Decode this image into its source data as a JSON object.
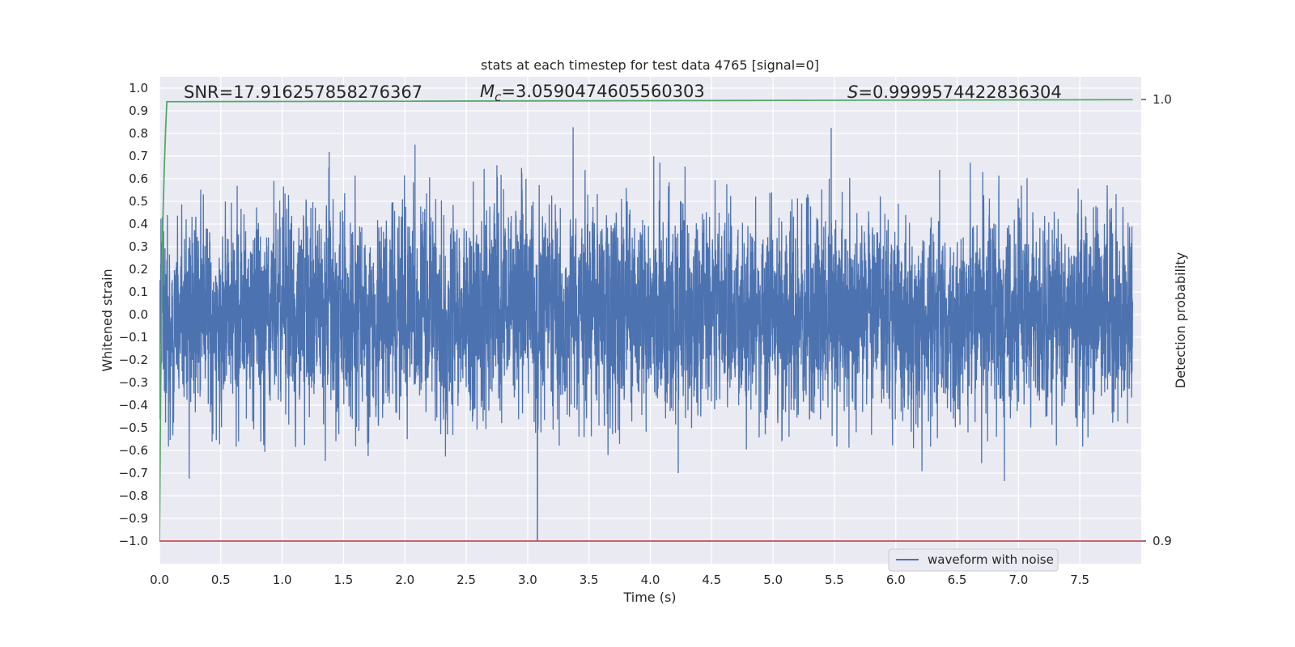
{
  "chart_data": {
    "type": "line",
    "title": "stats at each timestep for test data 4765 [signal=0]",
    "xlabel": "Time (s)",
    "ylabel": "Whitened strain",
    "y2label": "Detection probability",
    "xlim": [
      0.0,
      8.0
    ],
    "ylim": [
      -1.1,
      1.05
    ],
    "y2lim": [
      0.9,
      1.0
    ],
    "xticks": [
      0.0,
      0.5,
      1.0,
      1.5,
      2.0,
      2.5,
      3.0,
      3.5,
      4.0,
      4.5,
      5.0,
      5.5,
      6.0,
      6.5,
      7.0,
      7.5
    ],
    "yticks": [
      1.0,
      0.9,
      0.8,
      0.7,
      0.6,
      0.5,
      0.4,
      0.3,
      0.2,
      0.1,
      0.0,
      -0.1,
      -0.2,
      -0.3,
      -0.4,
      -0.5,
      -0.6,
      -0.7,
      -0.8,
      -0.9,
      -1.0
    ],
    "y2ticks": [
      1.0,
      0.9
    ],
    "grid": true,
    "legend_position": "lower-right",
    "annotations": {
      "snr": "SNR=17.916257858276367",
      "mc_symbol": "M",
      "mc_sub": "c",
      "mc_value": "=3.0590474605560303",
      "s_symbol": "S",
      "s_value": "=0.9999574422836304"
    },
    "series": [
      {
        "name": "waveform with noise",
        "axis": "left",
        "color": "#4c72b0",
        "description_values": "dense noisy whitened strain, sample rate ~2048 Hz over 0 to 7.93 s, amplitude mostly within ±0.5 with peaks near ±0.9 and a minimum of -1.0 near t=3.08 s",
        "x_range": [
          0.0,
          7.93
        ],
        "envelope": {
          "typical_abs": 0.5,
          "peak_max": 0.95,
          "peak_min": -1.0,
          "peak_min_time": 3.08
        }
      },
      {
        "axis": "right",
        "color": "#55a868",
        "x": [
          0.0,
          0.01,
          0.02,
          0.03,
          0.04,
          0.05,
          0.06,
          7.93
        ],
        "values": [
          0.9,
          0.935,
          0.96,
          0.975,
          0.985,
          0.993,
          0.9995,
          0.99996
        ]
      },
      {
        "axis": "right",
        "color": "#c44e52",
        "x": [
          0.0,
          8.0
        ],
        "values": [
          0.9,
          0.9
        ]
      }
    ]
  }
}
